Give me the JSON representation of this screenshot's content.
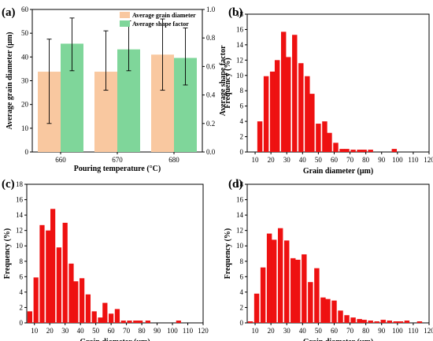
{
  "chart_data": [
    {
      "panel": "(a)",
      "type": "bar",
      "categories": [
        "660",
        "670",
        "680"
      ],
      "xlabel": "Pouring temperature (°C)",
      "ylabel_left": "Average grain diameter (μm)",
      "ylabel_right": "Average shape factor",
      "ylim_left": [
        0,
        60
      ],
      "ylim_right": [
        0,
        1.0
      ],
      "yticks_left": [
        "0",
        "10",
        "20",
        "30",
        "40",
        "50",
        "60"
      ],
      "yticks_right": [
        "0.0",
        "0.2",
        "0.4",
        "0.6",
        "0.8",
        "1.0"
      ],
      "legend": "top-right",
      "series": [
        {
          "name": "Average grain diameter",
          "color": "#f9c8a0",
          "axis": "left",
          "values": [
            33.8,
            33.8,
            41.0
          ],
          "err_low": [
            12.0,
            26.0,
            26.0
          ],
          "err_high": [
            47.5,
            51.0,
            56.0
          ]
        },
        {
          "name": "Average shape factor",
          "color": "#7fd69a",
          "axis": "right",
          "values": [
            0.76,
            0.72,
            0.66
          ],
          "err_low": [
            0.57,
            0.57,
            0.47
          ],
          "err_high": [
            0.94,
            0.92,
            0.87
          ]
        }
      ]
    },
    {
      "panel": "(b)",
      "type": "bar",
      "xlabel": "Grain diameter (μm)",
      "ylabel": "Frequency (%)",
      "xlim": [
        5,
        120
      ],
      "ylim": [
        0,
        18
      ],
      "xticks": [
        "10",
        "20",
        "30",
        "40",
        "50",
        "60",
        "70",
        "80",
        "90",
        "100",
        "110",
        "120"
      ],
      "yticks": [
        "0",
        "2",
        "4",
        "6",
        "8",
        "10",
        "12",
        "14",
        "16",
        "18"
      ],
      "bin_width": 3.7,
      "x": [
        13,
        17,
        21,
        24,
        28,
        31,
        35,
        39,
        43,
        46,
        50,
        54,
        57,
        61,
        65,
        68,
        72,
        76,
        79,
        83,
        98
      ],
      "values": [
        4.0,
        9.9,
        10.5,
        12.0,
        15.7,
        12.4,
        15.3,
        11.6,
        9.9,
        7.6,
        3.7,
        4.0,
        2.5,
        1.2,
        0.4,
        0.4,
        0.3,
        0.3,
        0.3,
        0.3,
        0.4
      ]
    },
    {
      "panel": "(c)",
      "type": "bar",
      "xlabel": "Grain diameter (μm)",
      "ylabel": "Frequency (%)",
      "xlim": [
        5,
        120
      ],
      "ylim": [
        0,
        18
      ],
      "xticks": [
        "10",
        "20",
        "30",
        "40",
        "50",
        "60",
        "70",
        "80",
        "90",
        "100",
        "110",
        "120"
      ],
      "yticks": [
        "0",
        "2",
        "4",
        "6",
        "8",
        "10",
        "12",
        "14",
        "16",
        "18"
      ],
      "bin_width": 3.7,
      "x": [
        7,
        11,
        15,
        19,
        22,
        26,
        30,
        34,
        37,
        41,
        45,
        49,
        53,
        56,
        60,
        64,
        68,
        72,
        76,
        79,
        84,
        104
      ],
      "values": [
        1.5,
        5.9,
        12.7,
        12.0,
        14.8,
        9.8,
        13.0,
        7.7,
        5.4,
        5.8,
        3.7,
        1.5,
        0.7,
        2.6,
        1.2,
        1.8,
        0.3,
        0.3,
        0.3,
        0.3,
        0.3,
        0.3
      ]
    },
    {
      "panel": "(d)",
      "type": "bar",
      "xlabel": "Grain diameter (μm)",
      "ylabel": "Frequency (%)",
      "xlim": [
        5,
        120
      ],
      "ylim": [
        0,
        18
      ],
      "xticks": [
        "10",
        "20",
        "30",
        "40",
        "50",
        "60",
        "70",
        "80",
        "90",
        "100",
        "110",
        "120"
      ],
      "yticks": [
        "0",
        "2",
        "4",
        "6",
        "8",
        "10",
        "12",
        "14",
        "16",
        "18"
      ],
      "bin_width": 3.7,
      "x": [
        7,
        11,
        15,
        19,
        22,
        26,
        30,
        34,
        37,
        41,
        45,
        49,
        53,
        56,
        60,
        64,
        68,
        72,
        76,
        79,
        83,
        87,
        91,
        95,
        99,
        102,
        106,
        114
      ],
      "values": [
        0.2,
        3.8,
        7.2,
        11.6,
        10.8,
        12.3,
        10.7,
        8.4,
        8.2,
        8.9,
        5.3,
        7.1,
        3.3,
        3.1,
        2.9,
        1.6,
        1.0,
        0.7,
        0.5,
        0.4,
        0.3,
        0.2,
        0.4,
        0.3,
        0.2,
        0.2,
        0.3,
        0.2
      ]
    }
  ]
}
